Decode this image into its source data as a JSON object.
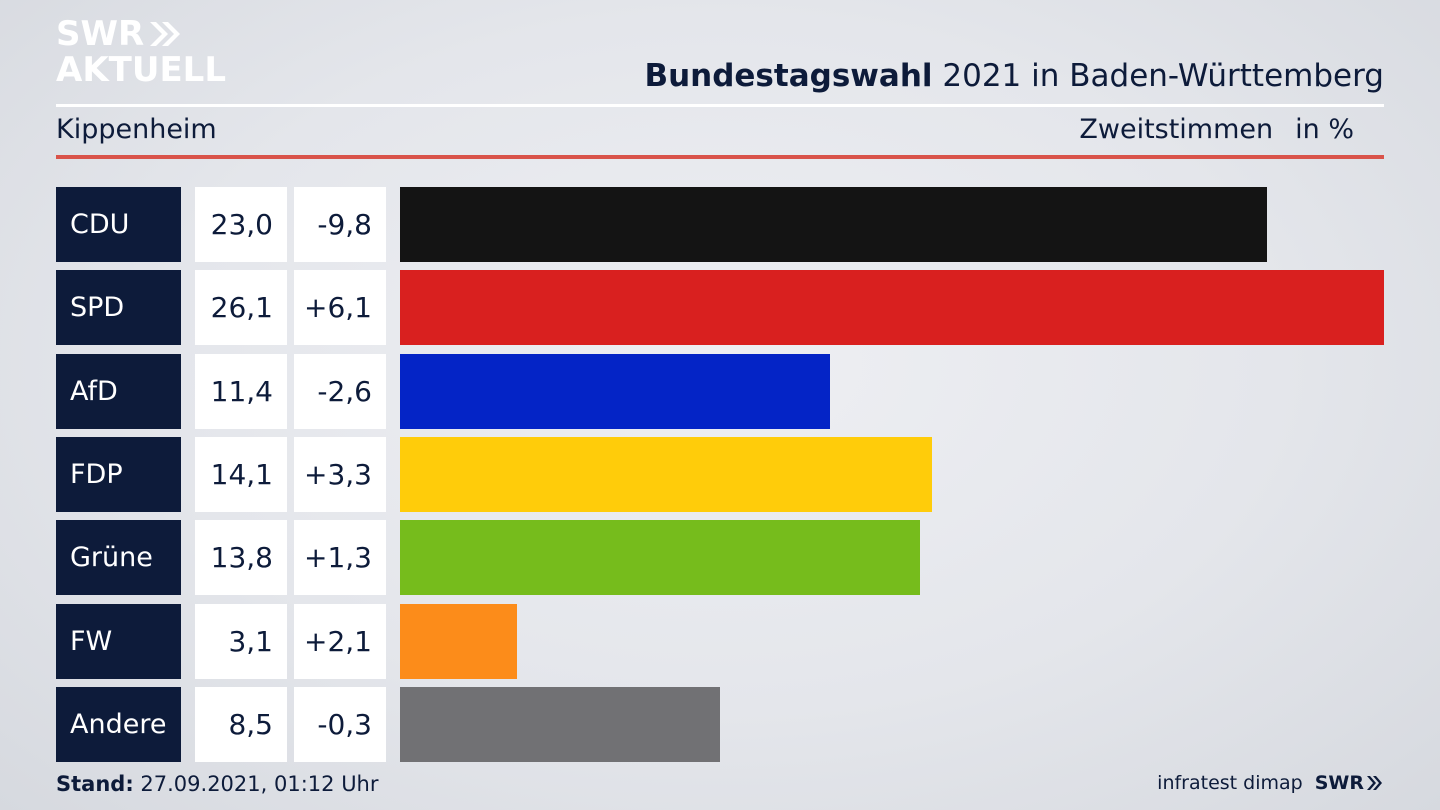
{
  "logo": {
    "line1": "SWR",
    "line2": "AKTUELL"
  },
  "header": {
    "title_bold": "Bundestagswahl",
    "title_rest": "2021 in Baden-Württemberg",
    "subtitle": "Kippenheim",
    "vote_type": "Zweitstimmen",
    "unit": "in %"
  },
  "chart_data": {
    "type": "bar",
    "orientation": "horizontal",
    "categories": [
      "CDU",
      "SPD",
      "AfD",
      "FDP",
      "Grüne",
      "FW",
      "Andere"
    ],
    "values": [
      23.0,
      26.1,
      11.4,
      14.1,
      13.8,
      3.1,
      8.5
    ],
    "value_labels": [
      "23,0",
      "26,1",
      "11,4",
      "14,1",
      "13,8",
      "3,1",
      "8,5"
    ],
    "change_labels": [
      "-9,8",
      "+6,1",
      "-2,6",
      "+3,3",
      "+1,3",
      "+2,1",
      "-0,3"
    ],
    "changes": [
      -9.8,
      6.1,
      -2.6,
      3.3,
      1.3,
      2.1,
      -0.3
    ],
    "colors": [
      "#141414",
      "#d9201f",
      "#0424c6",
      "#ffcc0a",
      "#76bc1c",
      "#fc8c1a",
      "#717174"
    ],
    "xlim": [
      0,
      26.1
    ]
  },
  "footer": {
    "stand_label": "Stand:",
    "stand_value": "27.09.2021, 01:12 Uhr",
    "source": "infratest dimap",
    "brand": "SWR"
  }
}
